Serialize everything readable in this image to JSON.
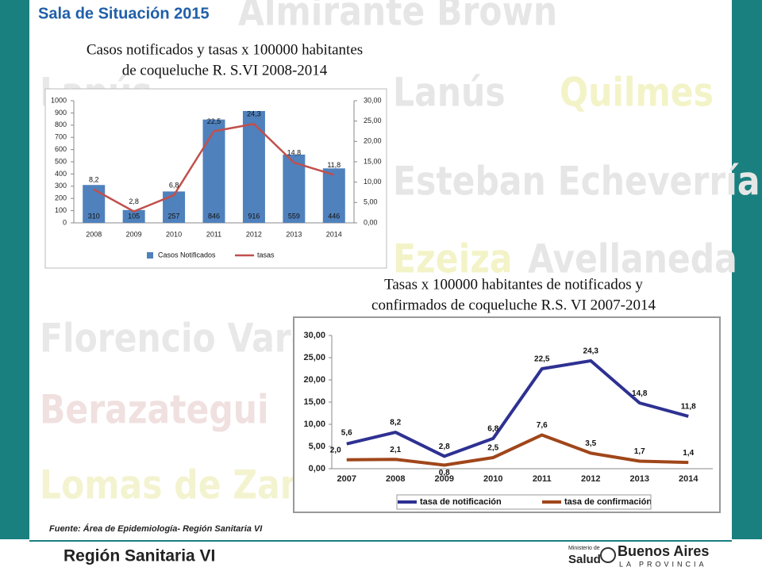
{
  "slide_title": "Sala de Situación 2015",
  "watermarks": [
    "Almirante Brown",
    "Lanús",
    "Lanús",
    "Quilmes",
    "Esteban Echeverría",
    "Ezeiza",
    "Avellaneda",
    "Florencio Varela",
    "Berazategui",
    "Lomas de Zamora"
  ],
  "source": "Fuente: Área de Epidemiología- Región Sanitaria VI",
  "footer": {
    "region": "Región Sanitaria VI",
    "ministry": "Ministerio de",
    "salud": "Salud",
    "province": "Buenos Aires",
    "province_sub": "LA PROVINCIA"
  },
  "chart_data": [
    {
      "type": "bar",
      "title": [
        "Casos notificados y tasas x 100000 habitantes",
        "de coqueluche R. S.VI 2008-2014"
      ],
      "categories": [
        "2008",
        "2009",
        "2010",
        "2011",
        "2012",
        "2013",
        "2014"
      ],
      "series": [
        {
          "name": "Casos Notificados",
          "color": "#4f81bd",
          "values": [
            310,
            105,
            257,
            846,
            916,
            559,
            446
          ]
        },
        {
          "name": "tasas",
          "color": "#c0504d",
          "type": "line",
          "axis": "y2",
          "values": [
            8.2,
            2.8,
            6.8,
            22.5,
            24.3,
            14.8,
            11.8
          ],
          "value_labels": [
            "8,2",
            "2,8",
            "6,8",
            "22,5",
            "24,3",
            "14,8",
            "11,8"
          ]
        }
      ],
      "ylim": [
        0,
        1000
      ],
      "yticks": [
        0,
        100,
        200,
        300,
        400,
        500,
        600,
        700,
        800,
        900,
        1000
      ],
      "y2lim": [
        0,
        30
      ],
      "y2ticks": [
        {
          "value": 0,
          "label": "0,00"
        },
        {
          "value": 5,
          "label": "5,00"
        },
        {
          "value": 10,
          "label": "10,00"
        },
        {
          "value": 15,
          "label": "15,00"
        },
        {
          "value": 20,
          "label": "20,00"
        },
        {
          "value": 25,
          "label": "25,00"
        },
        {
          "value": 30,
          "label": "30,00"
        }
      ],
      "grid": false
    },
    {
      "type": "line",
      "title": [
        "Tasas x 100000  habitantes de notificados y",
        "confirmados de coqueluche R.S. VI 2007-2014"
      ],
      "categories": [
        "2007",
        "2008",
        "2009",
        "2010",
        "2011",
        "2012",
        "2013",
        "2014"
      ],
      "series": [
        {
          "name": "tasa de notificación",
          "color": "#2e3192",
          "values": [
            5.6,
            8.2,
            2.8,
            6.8,
            22.5,
            24.3,
            14.8,
            11.8
          ],
          "value_labels": [
            "5,6",
            "8,2",
            "2,8",
            "6,8",
            "22,5",
            "24,3",
            "14,8",
            "11,8"
          ]
        },
        {
          "name": "tasa de confirmación",
          "color": "#a0461a",
          "values": [
            2.0,
            2.1,
            0.8,
            2.5,
            7.6,
            3.5,
            1.7,
            1.4
          ],
          "value_labels": [
            "2,0",
            "2,1",
            "0,8",
            "2,5",
            "7,6",
            "3,5",
            "1,7",
            "1,4"
          ]
        }
      ],
      "ylim": [
        0,
        30
      ],
      "yticks": [
        {
          "value": 0,
          "label": "0,00"
        },
        {
          "value": 5,
          "label": "5,00"
        },
        {
          "value": 10,
          "label": "10,00"
        },
        {
          "value": 15,
          "label": "15,00"
        },
        {
          "value": 20,
          "label": "20,00"
        },
        {
          "value": 25,
          "label": "25,00"
        },
        {
          "value": 30,
          "label": "30,00"
        }
      ],
      "grid": false
    }
  ]
}
